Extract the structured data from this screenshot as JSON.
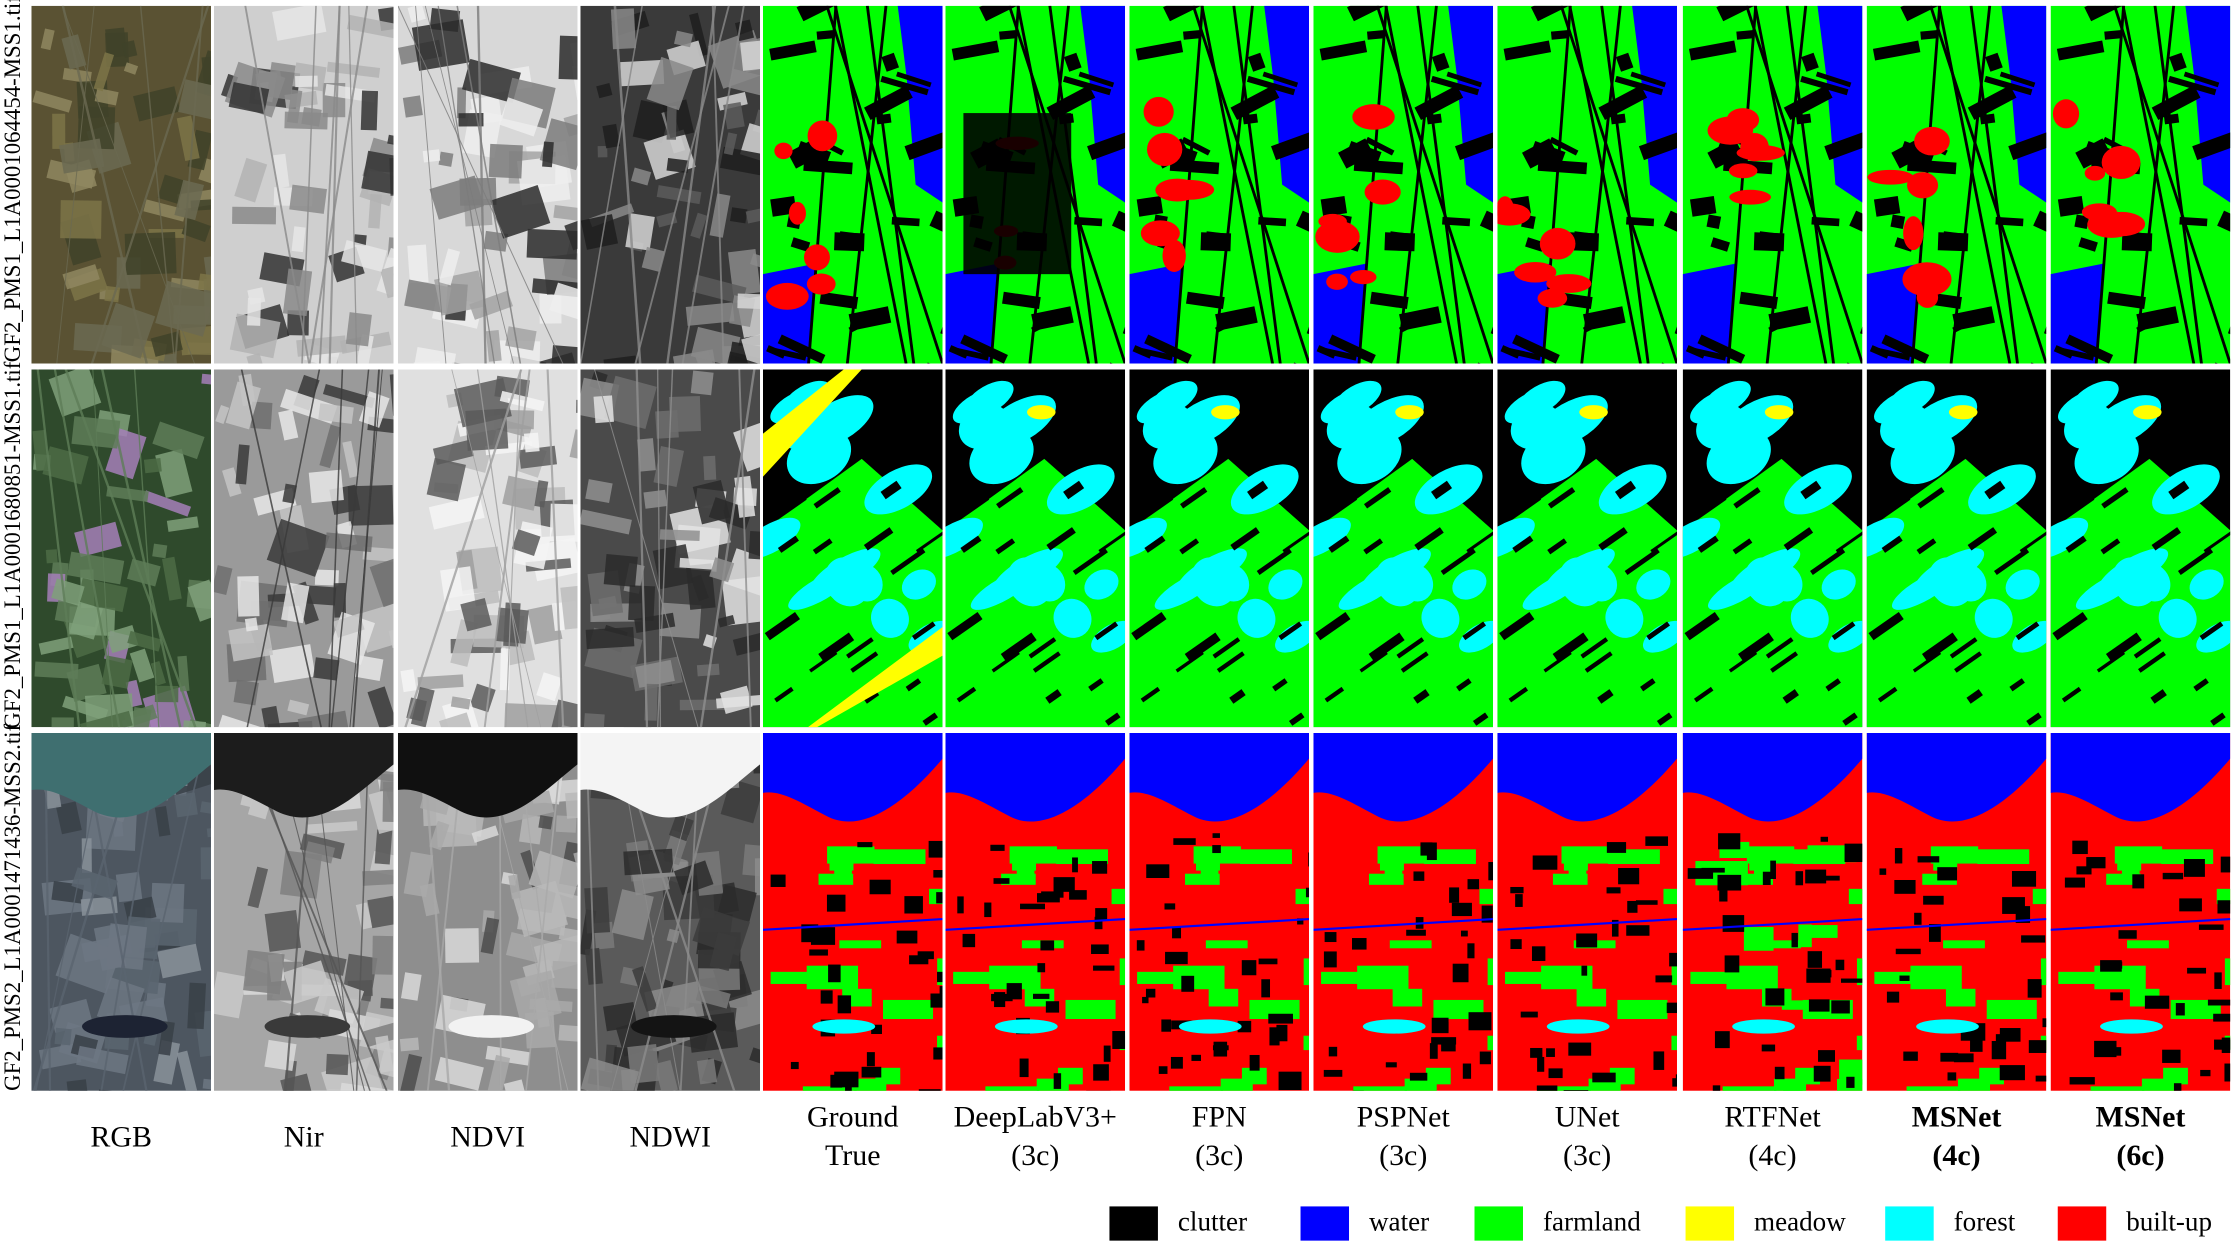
{
  "rows": [
    {
      "label": "GF2_PMS1_L1A0001064454-MSS1.tif"
    },
    {
      "label": "GF2_PMS1_L1A0001680851-MSS1.tif"
    },
    {
      "label": "GF2_PMS2_L1A0001471436-MSS2.tif"
    }
  ],
  "columns": [
    {
      "line1": "RGB",
      "line2": "",
      "bold": false
    },
    {
      "line1": "Nir",
      "line2": "",
      "bold": false
    },
    {
      "line1": "NDVI",
      "line2": "",
      "bold": false
    },
    {
      "line1": "NDWI",
      "line2": "",
      "bold": false
    },
    {
      "line1": "Ground",
      "line2": "True",
      "bold": false
    },
    {
      "line1": "DeepLabV3+",
      "line2": "(3c)",
      "bold": false
    },
    {
      "line1": "FPN",
      "line2": "(3c)",
      "bold": false
    },
    {
      "line1": "PSPNet",
      "line2": "(3c)",
      "bold": false
    },
    {
      "line1": "UNet",
      "line2": "(3c)",
      "bold": false
    },
    {
      "line1": "RTFNet",
      "line2": "(4c)",
      "bold": false
    },
    {
      "line1": "MSNet",
      "line2": "(4c)",
      "bold": true
    },
    {
      "line1": "MSNet",
      "line2": "(6c)",
      "bold": true
    }
  ],
  "legend": [
    {
      "label": "clutter",
      "color": "#000000"
    },
    {
      "label": "water",
      "color": "#0000ff"
    },
    {
      "label": "farmland",
      "color": "#00ff00"
    },
    {
      "label": "meadow",
      "color": "#ffff00"
    },
    {
      "label": "forest",
      "color": "#00ffff"
    },
    {
      "label": "built-up",
      "color": "#ff0000"
    }
  ]
}
